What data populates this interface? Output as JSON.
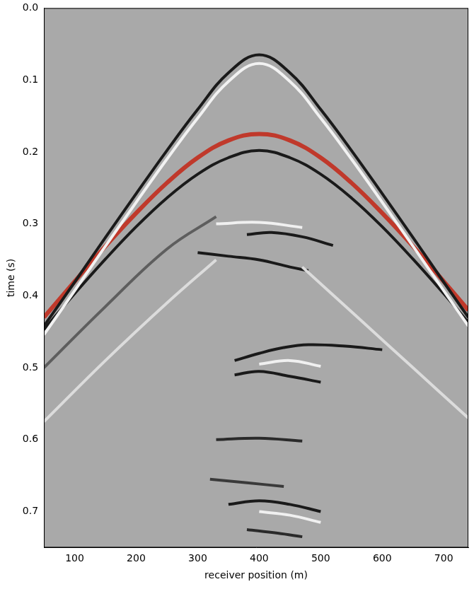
{
  "chart_data": {
    "type": "line",
    "x_label": "receiver position (m)",
    "y_label": "time (s)",
    "xlim": [
      50,
      740
    ],
    "xticks": [
      100,
      200,
      300,
      400,
      500,
      600,
      700
    ],
    "ylim": [
      0,
      0.75
    ],
    "yticks": [
      {
        "value": 0,
        "label": "0.0"
      },
      0.1,
      0.2,
      0.3,
      0.4,
      0.5,
      0.6,
      0.7
    ],
    "y_reversed": true,
    "grid": false,
    "tick_labels": true,
    "series": [
      {
        "color": "#5e5e5e",
        "x": [
          50,
          150,
          250,
          330
        ],
        "values": [
          0.5,
          0.415,
          0.335,
          0.29
        ]
      },
      {
        "color": "#dcdcdc",
        "x": [
          50,
          150,
          250,
          330
        ],
        "values": [
          0.575,
          0.49,
          0.41,
          0.35
        ]
      },
      {
        "color": "#dcdcdc",
        "x": [
          470,
          560,
          650,
          740
        ],
        "values": [
          0.36,
          0.43,
          0.5,
          0.57
        ]
      },
      {
        "color": "#1a1a1a",
        "x": [
          50,
          100,
          150,
          200,
          250,
          300,
          350,
          400,
          450,
          500,
          550,
          600,
          650,
          700,
          740
        ],
        "values": [
          0.442,
          0.381,
          0.319,
          0.258,
          0.198,
          0.141,
          0.09,
          0.065,
          0.09,
          0.141,
          0.198,
          0.258,
          0.319,
          0.381,
          0.43
        ]
      },
      {
        "color": "#f2f2f2",
        "x": [
          50,
          100,
          150,
          200,
          250,
          300,
          350,
          400,
          450,
          500,
          550,
          600,
          650,
          700,
          740
        ],
        "values": [
          0.454,
          0.393,
          0.331,
          0.27,
          0.21,
          0.153,
          0.102,
          0.077,
          0.102,
          0.153,
          0.21,
          0.27,
          0.331,
          0.393,
          0.442
        ]
      },
      {
        "color": "#c0392b",
        "x": [
          50,
          100,
          150,
          200,
          250,
          300,
          350,
          400,
          450,
          500,
          550,
          600,
          650,
          700,
          740
        ],
        "values": [
          0.43,
          0.38,
          0.331,
          0.285,
          0.243,
          0.208,
          0.184,
          0.175,
          0.184,
          0.208,
          0.243,
          0.285,
          0.331,
          0.38,
          0.42
        ]
      },
      {
        "color": "#1a1a1a",
        "x": [
          50,
          100,
          150,
          200,
          250,
          300,
          350,
          400,
          450,
          500,
          550,
          600,
          650,
          700,
          740
        ],
        "values": [
          0.447,
          0.397,
          0.349,
          0.304,
          0.264,
          0.231,
          0.208,
          0.198,
          0.208,
          0.231,
          0.264,
          0.304,
          0.349,
          0.397,
          0.437
        ]
      },
      {
        "color": "#f0f0f0",
        "x": [
          330,
          400,
          470
        ],
        "values": [
          0.3,
          0.298,
          0.305
        ]
      },
      {
        "color": "#1a1a1a",
        "x": [
          380,
          420,
          470,
          520
        ],
        "values": [
          0.315,
          0.312,
          0.318,
          0.33
        ]
      },
      {
        "color": "#1a1a1a",
        "x": [
          300,
          350,
          400,
          450,
          480
        ],
        "values": [
          0.34,
          0.345,
          0.35,
          0.36,
          0.365
        ]
      },
      {
        "color": "#1a1a1a",
        "x": [
          360,
          400,
          440,
          480,
          540,
          600
        ],
        "values": [
          0.49,
          0.48,
          0.472,
          0.468,
          0.47,
          0.475
        ]
      },
      {
        "color": "#f0f0f0",
        "x": [
          400,
          450,
          500
        ],
        "values": [
          0.495,
          0.49,
          0.498
        ]
      },
      {
        "color": "#1a1a1a",
        "x": [
          360,
          400,
          450,
          500
        ],
        "values": [
          0.51,
          0.505,
          0.512,
          0.52
        ]
      },
      {
        "color": "#2a2a2a",
        "x": [
          330,
          400,
          470
        ],
        "values": [
          0.6,
          0.598,
          0.602
        ]
      },
      {
        "color": "#3a3a3a",
        "x": [
          320,
          380,
          440
        ],
        "values": [
          0.655,
          0.66,
          0.665
        ]
      },
      {
        "color": "#1a1a1a",
        "x": [
          350,
          400,
          450,
          500
        ],
        "values": [
          0.69,
          0.685,
          0.69,
          0.7
        ]
      },
      {
        "color": "#f0f0f0",
        "x": [
          400,
          450,
          500
        ],
        "values": [
          0.7,
          0.705,
          0.715
        ]
      },
      {
        "color": "#2a2a2a",
        "x": [
          380,
          430,
          470
        ],
        "values": [
          0.725,
          0.73,
          0.735
        ]
      }
    ]
  }
}
